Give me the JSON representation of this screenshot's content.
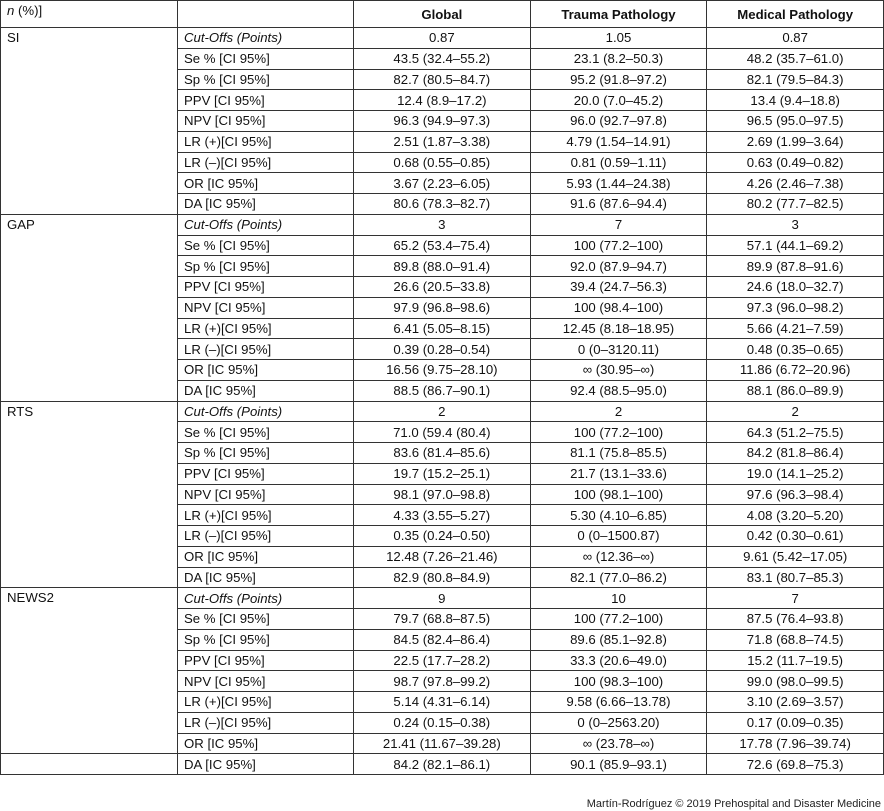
{
  "header": {
    "col0_italic": "n",
    "col0_rest": " (%)]",
    "col1": "",
    "columns": [
      "Global",
      "Trauma Pathology",
      "Medical Pathology"
    ]
  },
  "blocks": [
    {
      "name": "SI",
      "rows": [
        {
          "label": "Cut-Offs (Points)",
          "italic": true,
          "values": [
            "0.87",
            "1.05",
            "0.87"
          ]
        },
        {
          "label": "Se % [CI 95%]",
          "values": [
            "43.5 (32.4–55.2)",
            "23.1 (8.2–50.3)",
            "48.2 (35.7–61.0)"
          ]
        },
        {
          "label": "Sp % [CI 95%]",
          "values": [
            "82.7 (80.5–84.7)",
            "95.2 (91.8–97.2)",
            "82.1 (79.5–84.3)"
          ]
        },
        {
          "label": "PPV [CI 95%]",
          "values": [
            "12.4 (8.9–17.2)",
            "20.0 (7.0–45.2)",
            "13.4 (9.4–18.8)"
          ]
        },
        {
          "label": "NPV [CI 95%]",
          "values": [
            "96.3 (94.9–97.3)",
            "96.0 (92.7–97.8)",
            "96.5 (95.0–97.5)"
          ]
        },
        {
          "label": "LR (+)[CI 95%]",
          "values": [
            "2.51 (1.87–3.38)",
            "4.79 (1.54–14.91)",
            "2.69 (1.99–3.64)"
          ]
        },
        {
          "label": "LR (–)[CI 95%]",
          "values": [
            "0.68 (0.55–0.85)",
            "0.81 (0.59–1.11)",
            "0.63 (0.49–0.82)"
          ]
        },
        {
          "label": "OR [IC 95%]",
          "values": [
            "3.67 (2.23–6.05)",
            "5.93 (1.44–24.38)",
            "4.26 (2.46–7.38)"
          ]
        },
        {
          "label": "DA [IC 95%]",
          "values": [
            "80.6 (78.3–82.7)",
            "91.6 (87.6–94.4)",
            "80.2 (77.7–82.5)"
          ]
        }
      ]
    },
    {
      "name": "GAP",
      "rows": [
        {
          "label": "Cut-Offs (Points)",
          "italic": true,
          "values": [
            "3",
            "7",
            "3"
          ]
        },
        {
          "label": "Se % [CI 95%]",
          "values": [
            "65.2 (53.4–75.4)",
            "100 (77.2–100)",
            "57.1 (44.1–69.2)"
          ]
        },
        {
          "label": "Sp % [CI 95%]",
          "values": [
            "89.8 (88.0–91.4)",
            "92.0 (87.9–94.7)",
            "89.9 (87.8–91.6)"
          ]
        },
        {
          "label": "PPV [CI 95%]",
          "values": [
            "26.6 (20.5–33.8)",
            "39.4 (24.7–56.3)",
            "24.6 (18.0–32.7)"
          ]
        },
        {
          "label": "NPV [CI 95%]",
          "values": [
            "97.9 (96.8–98.6)",
            "100 (98.4–100)",
            "97.3 (96.0–98.2)"
          ]
        },
        {
          "label": "LR (+)[CI 95%]",
          "values": [
            "6.41 (5.05–8.15)",
            "12.45 (8.18–18.95)",
            "5.66 (4.21–7.59)"
          ]
        },
        {
          "label": "LR (–)[CI 95%]",
          "values": [
            "0.39 (0.28–0.54)",
            "0 (0–3120.11)",
            "0.48 (0.35–0.65)"
          ]
        },
        {
          "label": "OR [IC 95%]",
          "values": [
            "16.56 (9.75–28.10)",
            "∞ (30.95–∞)",
            "11.86 (6.72–20.96)"
          ]
        },
        {
          "label": "DA [IC 95%]",
          "values": [
            "88.5 (86.7–90.1)",
            "92.4 (88.5–95.0)",
            "88.1 (86.0–89.9)"
          ]
        }
      ]
    },
    {
      "name": "RTS",
      "rows": [
        {
          "label": "Cut-Offs (Points)",
          "italic": true,
          "values": [
            "2",
            "2",
            "2"
          ]
        },
        {
          "label": "Se % [CI 95%]",
          "values": [
            "71.0 (59.4 (80.4)",
            "100 (77.2–100)",
            "64.3 (51.2–75.5)"
          ]
        },
        {
          "label": "Sp % [CI 95%]",
          "values": [
            "83.6 (81.4–85.6)",
            "81.1 (75.8–85.5)",
            "84.2 (81.8–86.4)"
          ]
        },
        {
          "label": "PPV [CI 95%]",
          "values": [
            "19.7 (15.2–25.1)",
            "21.7 (13.1–33.6)",
            "19.0 (14.1–25.2)"
          ]
        },
        {
          "label": "NPV [CI 95%]",
          "values": [
            "98.1 (97.0–98.8)",
            "100 (98.1–100)",
            "97.6 (96.3–98.4)"
          ]
        },
        {
          "label": "LR (+)[CI 95%]",
          "values": [
            "4.33 (3.55–5.27)",
            "5.30 (4.10–6.85)",
            "4.08 (3.20–5.20)"
          ]
        },
        {
          "label": "LR (–)[CI 95%]",
          "values": [
            "0.35 (0.24–0.50)",
            "0 (0–1500.87)",
            "0.42 (0.30–0.61)"
          ]
        },
        {
          "label": "OR [IC 95%]",
          "values": [
            "12.48 (7.26–21.46)",
            "∞ (12.36–∞)",
            "9.61 (5.42–17.05)"
          ]
        },
        {
          "label": "DA [IC 95%]",
          "values": [
            "82.9 (80.8–84.9)",
            "82.1 (77.0–86.2)",
            "83.1 (80.7–85.3)"
          ]
        }
      ]
    },
    {
      "name": "NEWS2",
      "rows": [
        {
          "label": "Cut-Offs (Points)",
          "italic": true,
          "values": [
            "9",
            "10",
            "7"
          ]
        },
        {
          "label": "Se % [CI 95%]",
          "values": [
            "79.7 (68.8–87.5)",
            "100 (77.2–100)",
            "87.5 (76.4–93.8)"
          ]
        },
        {
          "label": "Sp % [CI 95%]",
          "values": [
            "84.5 (82.4–86.4)",
            "89.6 (85.1–92.8)",
            "71.8 (68.8–74.5)"
          ]
        },
        {
          "label": "PPV [CI 95%]",
          "values": [
            "22.5 (17.7–28.2)",
            "33.3 (20.6–49.0)",
            "15.2 (11.7–19.5)"
          ]
        },
        {
          "label": "NPV [CI 95%]",
          "values": [
            "98.7 (97.8–99.2)",
            "100 (98.3–100)",
            "99.0 (98.0–99.5)"
          ]
        },
        {
          "label": "LR (+)[CI 95%]",
          "values": [
            "5.14 (4.31–6.14)",
            "9.58 (6.66–13.78)",
            "3.10 (2.69–3.57)"
          ]
        },
        {
          "label": "LR (–)[CI 95%]",
          "values": [
            "0.24 (0.15–0.38)",
            "0 (0–2563.20)",
            "0.17 (0.09–0.35)"
          ]
        },
        {
          "label": "OR [IC 95%]",
          "values": [
            "21.41 (11.67–39.28)",
            "∞ (23.78–∞)",
            "17.78 (7.96–39.74)"
          ]
        }
      ]
    },
    {
      "name": "",
      "rows": [
        {
          "label": "DA [IC 95%]",
          "values": [
            "84.2 (82.1–86.1)",
            "90.1 (85.9–93.1)",
            "72.6 (69.8–75.3)"
          ]
        }
      ]
    }
  ],
  "footer": "Martín-Rodríguez © 2019 Prehospital and Disaster Medicine"
}
